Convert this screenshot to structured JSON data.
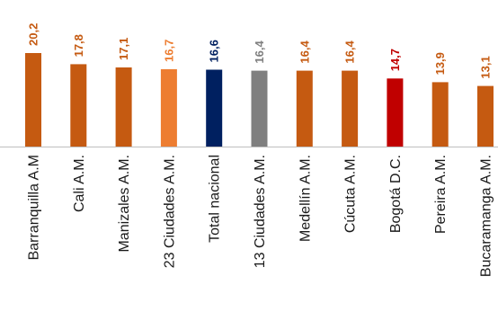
{
  "chart_data": {
    "type": "bar",
    "categories": [
      "Barranquilla A.M",
      "Cali A.M.",
      "Manizales A.M.",
      "23 Ciudades A.M.",
      "Total nacional",
      "13 Ciudades A.M.",
      "Medellín A.M.",
      "Cúcuta A.M.",
      "Bogotá D.C.",
      "Pereira A.M.",
      "Bucaramanga A.M."
    ],
    "values": [
      20.2,
      17.8,
      17.1,
      16.7,
      16.6,
      16.4,
      16.4,
      16.4,
      14.7,
      13.9,
      13.1
    ],
    "value_labels": [
      "20,2",
      "17,8",
      "17,1",
      "16,7",
      "16,6",
      "16,4",
      "16,4",
      "16,4",
      "14,7",
      "13,9",
      "13,1"
    ],
    "bar_colors": [
      "#C55A11",
      "#C55A11",
      "#C55A11",
      "#ED7D31",
      "#002060",
      "#7F7F7F",
      "#C55A11",
      "#C55A11",
      "#C00000",
      "#C55A11",
      "#C55A11"
    ],
    "label_colors": [
      "#C55A11",
      "#C55A11",
      "#C55A11",
      "#ED7D31",
      "#002060",
      "#7F7F7F",
      "#C55A11",
      "#C55A11",
      "#C00000",
      "#C55A11",
      "#C55A11"
    ],
    "title": "",
    "xlabel": "",
    "ylabel": "",
    "ylim": [
      0,
      20.2
    ],
    "grid": false,
    "legend": "none"
  }
}
